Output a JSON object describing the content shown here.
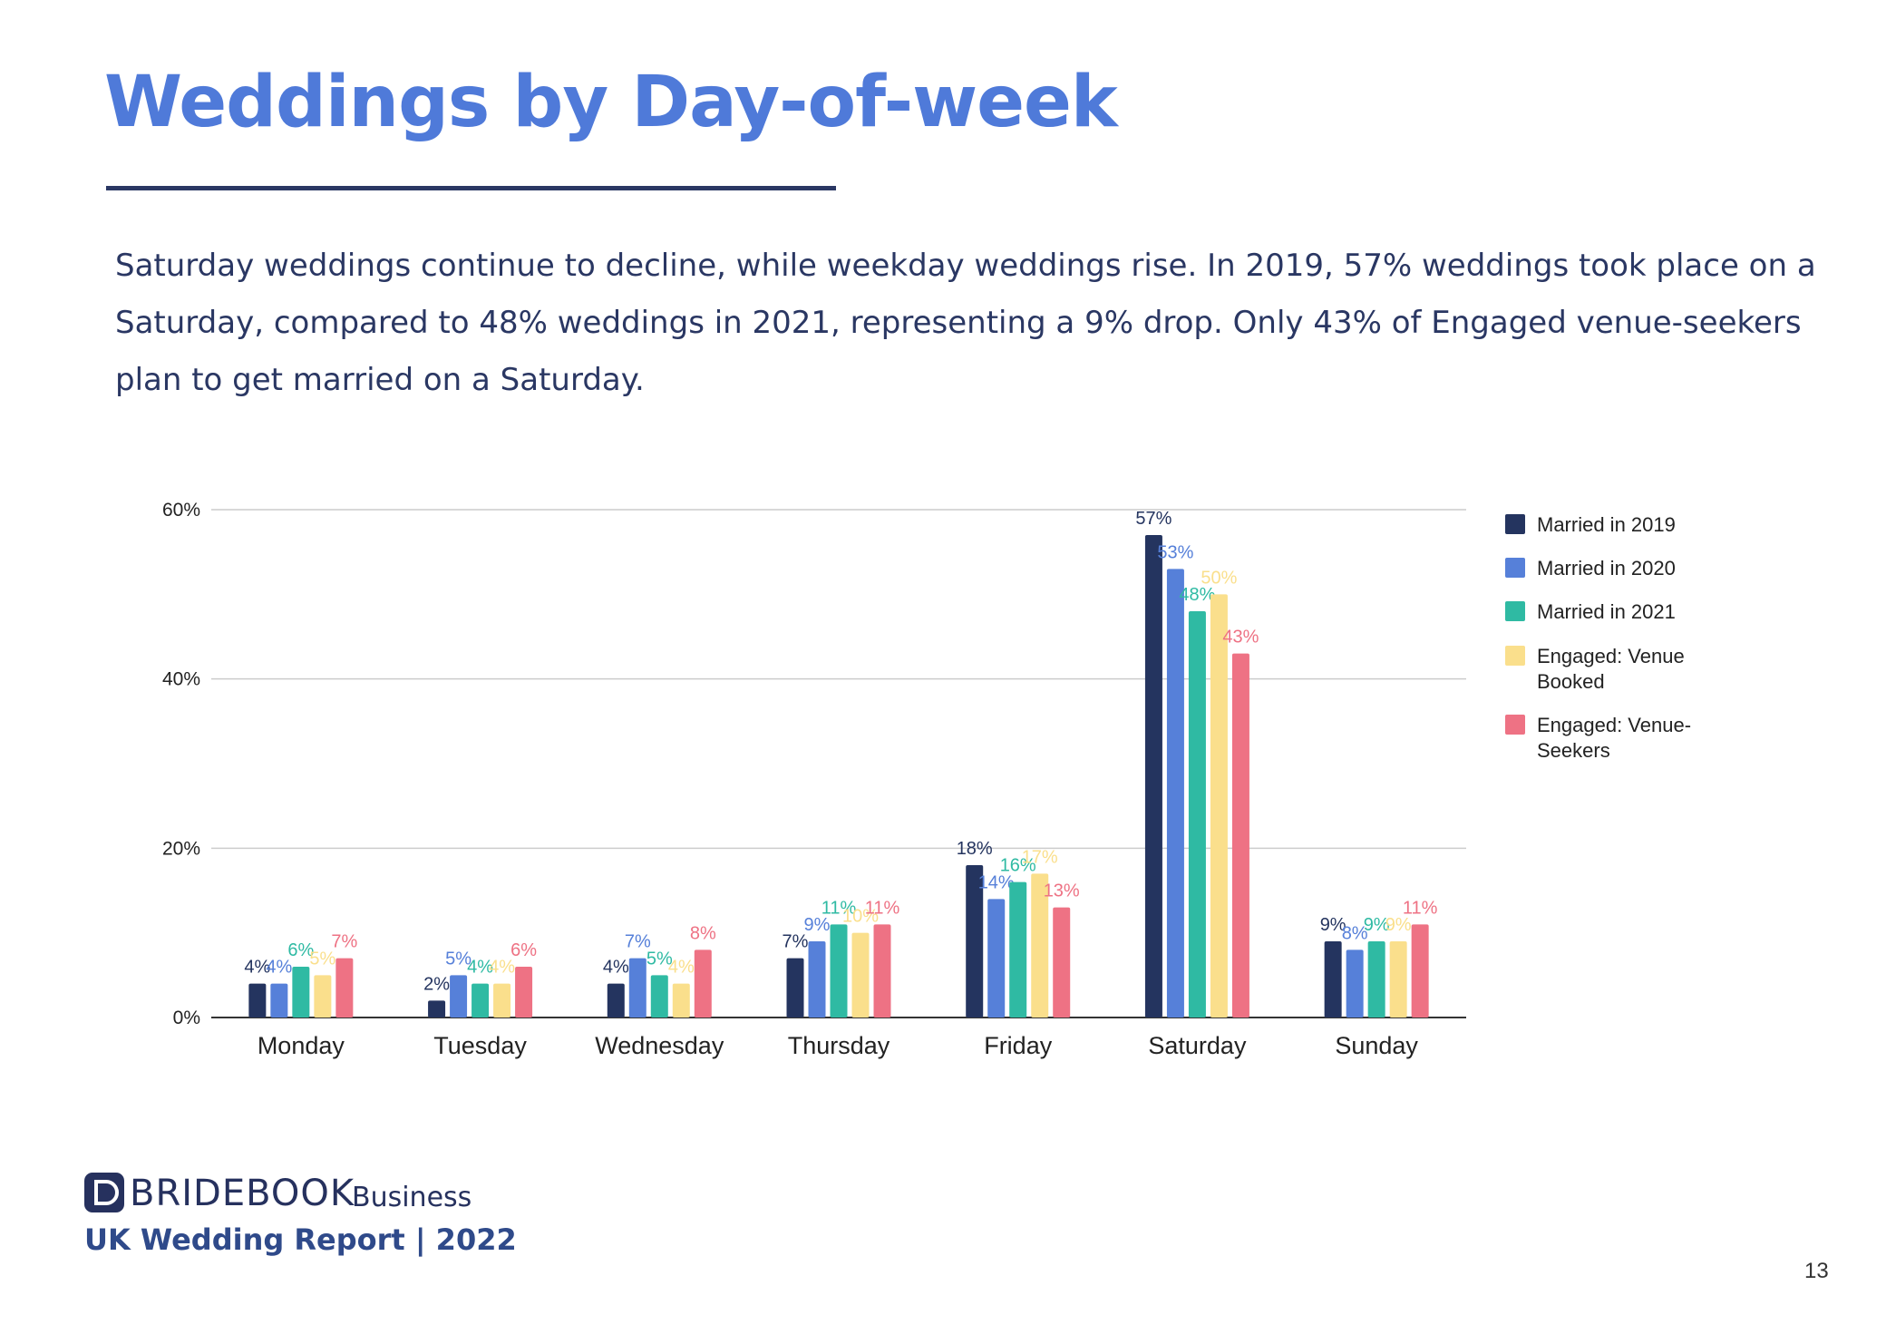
{
  "page": {
    "title": "Weddings by Day-of-week",
    "intro": "Saturday weddings continue to decline, while weekday weddings rise.  In 2019, 57% weddings took place on a Saturday, compared to 48% weddings in 2021, representing a 9% drop.  Only 43% of Engaged venue-seekers plan to get married on a Saturday.",
    "page_number": "13"
  },
  "footer": {
    "brand_name": "BRIDEBOOK",
    "brand_suffix": "Business",
    "report": "UK Wedding Report | 2022"
  },
  "colors": {
    "title": "#4f7ad9",
    "text": "#2a3763",
    "grid": "#cccccc",
    "axis": "#333333"
  },
  "chart_data": {
    "type": "bar",
    "title": "",
    "xlabel": "",
    "ylabel": "",
    "ylim": [
      0,
      60
    ],
    "yticks": [
      "0%",
      "20%",
      "40%",
      "60%"
    ],
    "ytick_values": [
      0,
      20,
      40,
      60
    ],
    "grid": true,
    "legend_position": "right",
    "categories": [
      "Monday",
      "Tuesday",
      "Wednesday",
      "Thursday",
      "Friday",
      "Saturday",
      "Sunday"
    ],
    "series": [
      {
        "name": "Married in 2019",
        "color": "#24345f",
        "values": [
          4,
          2,
          4,
          7,
          18,
          57,
          9
        ],
        "labels": [
          "4%",
          "2%",
          "4%",
          "7%",
          "18%",
          "57%",
          "9%"
        ]
      },
      {
        "name": "Married in 2020",
        "color": "#5680d9",
        "values": [
          4,
          5,
          7,
          9,
          14,
          53,
          8
        ],
        "labels": [
          "4%",
          "5%",
          "7%",
          "9%",
          "14%",
          "53%",
          "8%"
        ]
      },
      {
        "name": "Married in 2021",
        "color": "#2fbaa3",
        "values": [
          6,
          4,
          5,
          11,
          16,
          48,
          9
        ],
        "labels": [
          "6%",
          "4%",
          "5%",
          "11%",
          "16%",
          "48%",
          "9%"
        ]
      },
      {
        "name": "Engaged: Venue Booked",
        "color": "#fadf8c",
        "values": [
          5,
          4,
          4,
          10,
          17,
          50,
          9
        ],
        "labels": [
          "5%",
          "4%",
          "4%",
          "10%",
          "17%",
          "50%",
          "9%"
        ]
      },
      {
        "name": "Engaged: Venue-Seekers",
        "color": "#ee7284",
        "values": [
          7,
          6,
          8,
          11,
          13,
          43,
          11
        ],
        "labels": [
          "7%",
          "6%",
          "8%",
          "11%",
          "13%",
          "43%",
          "11%"
        ]
      }
    ],
    "legend_lines": [
      [
        "Married in 2019"
      ],
      [
        "Married in 2020"
      ],
      [
        "Married in 2021"
      ],
      [
        "Engaged: Venue",
        "Booked"
      ],
      [
        "Engaged: Venue-",
        "Seekers"
      ]
    ]
  }
}
